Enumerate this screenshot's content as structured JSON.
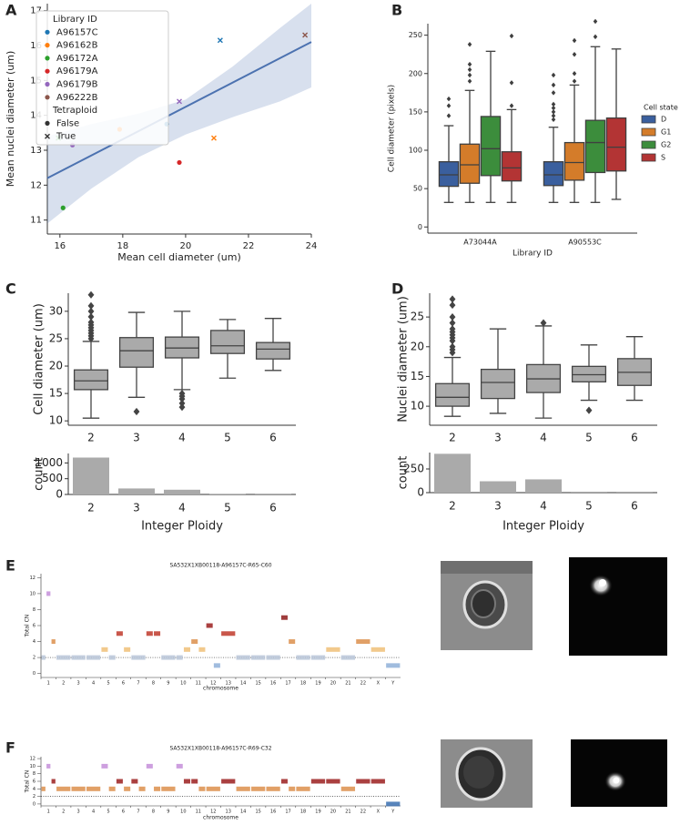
{
  "panel_labels": [
    "A",
    "B",
    "C",
    "D",
    "E",
    "F"
  ],
  "chart_data": [
    {
      "type": "scatter",
      "xlabel": "Mean cell diameter (um)",
      "ylabel": "Mean nuclei diameter (um)",
      "xlim": [
        15.6,
        24.0
      ],
      "xticks": [
        16,
        18,
        20,
        22,
        24
      ],
      "ylim": [
        10.6,
        17.2
      ],
      "yticks": [
        11,
        12,
        13,
        14,
        15,
        16,
        17
      ],
      "legend_title": "Library ID",
      "markers": {
        "title": "Tetraploid",
        "names": [
          "False",
          "True"
        ],
        "color": "#333333"
      },
      "series": [
        {
          "name": "A96157C",
          "color": "#1f77b4",
          "x": [
            19.4,
            21.1
          ],
          "y": [
            13.75,
            16.15
          ],
          "tetraploid": [
            0,
            1
          ]
        },
        {
          "name": "A96162B",
          "color": "#ff7f0e",
          "x": [
            17.9,
            20.9
          ],
          "y": [
            13.6,
            13.35
          ],
          "tetraploid": [
            0,
            1
          ]
        },
        {
          "name": "A96172A",
          "color": "#2ca02c",
          "x": [
            16.1,
            15.95
          ],
          "y": [
            11.35,
            13.35
          ],
          "tetraploid": [
            0,
            1
          ]
        },
        {
          "name": "A96179A",
          "color": "#d62728",
          "x": [
            19.8
          ],
          "y": [
            12.65
          ],
          "tetraploid": [
            0
          ]
        },
        {
          "name": "A96179B",
          "color": "#9467bd",
          "x": [
            16.4,
            19.8
          ],
          "y": [
            13.15,
            14.4
          ],
          "tetraploid": [
            0,
            1
          ]
        },
        {
          "name": "A96222B",
          "color": "#8c564b",
          "x": [
            23.8
          ],
          "y": [
            16.3
          ],
          "tetraploid": [
            1
          ]
        }
      ],
      "fit_color": "#4c72b0",
      "fit": {
        "x": [
          15.6,
          24.0
        ],
        "y": [
          12.2,
          16.1
        ]
      },
      "ci": {
        "x": [
          15.6,
          17,
          18.5,
          20,
          21.5,
          23,
          24
        ],
        "upper": [
          13.4,
          13.75,
          14.05,
          14.45,
          15.4,
          16.5,
          17.2
        ],
        "lower": [
          10.9,
          11.9,
          12.8,
          13.45,
          13.95,
          14.4,
          14.8
        ]
      }
    },
    {
      "type": "box",
      "xlabel": "Library ID",
      "ylabel": "Cell diameter (pixels)",
      "categories": [
        "A73044A",
        "A90553C"
      ],
      "ylim": [
        -8,
        265
      ],
      "yticks": [
        0,
        50,
        100,
        150,
        200,
        250
      ],
      "line_color": "#3f3f3f",
      "legend_title": "Cell state",
      "series": [
        {
          "name": "D",
          "color": "#3a5f9e",
          "boxes": [
            {
              "whislo": 32,
              "q1": 53,
              "median": 68,
              "q3": 85,
              "whishi": 132,
              "fliers": [
                145,
                158,
                167
              ]
            },
            {
              "whislo": 32,
              "q1": 54,
              "median": 68,
              "q3": 85,
              "whishi": 130,
              "fliers": [
                140,
                145,
                150,
                155,
                160,
                175,
                185,
                198
              ]
            }
          ]
        },
        {
          "name": "G1",
          "color": "#d47c2a",
          "boxes": [
            {
              "whislo": 32,
              "q1": 57,
              "median": 81,
              "q3": 108,
              "whishi": 178,
              "fliers": [
                190,
                198,
                205,
                212,
                238
              ]
            },
            {
              "whislo": 32,
              "q1": 61,
              "median": 84,
              "q3": 110,
              "whishi": 185,
              "fliers": [
                190,
                200,
                225,
                243
              ]
            }
          ]
        },
        {
          "name": "G2",
          "color": "#3c8d3c",
          "boxes": [
            {
              "whislo": 32,
              "q1": 67,
              "median": 102,
              "q3": 144,
              "whishi": 229,
              "fliers": []
            },
            {
              "whislo": 32,
              "q1": 71,
              "median": 110,
              "q3": 139,
              "whishi": 235,
              "fliers": [
                248,
                268
              ]
            }
          ]
        },
        {
          "name": "S",
          "color": "#b33434",
          "boxes": [
            {
              "whislo": 32,
              "q1": 60,
              "median": 77,
              "q3": 98,
              "whishi": 153,
              "fliers": [
                158,
                188,
                249
              ]
            },
            {
              "whislo": 36,
              "q1": 73,
              "median": 104,
              "q3": 142,
              "whishi": 232,
              "fliers": []
            }
          ]
        }
      ]
    },
    {
      "type": "box",
      "ylabel": "Cell diameter (um)",
      "categories": [
        "2",
        "3",
        "4",
        "5",
        "6"
      ],
      "ylim": [
        9.2,
        33.3
      ],
      "yticks": [
        10,
        15,
        20,
        25,
        30
      ],
      "line_color": "#444444",
      "series": [
        {
          "color": "#aaaaaa",
          "boxes": [
            {
              "whislo": 10.5,
              "q1": 15.7,
              "median": 17.3,
              "q3": 19.3,
              "whishi": 24.5,
              "fliers": [
                25,
                25.5,
                26,
                26.5,
                27,
                27.5,
                28,
                29,
                30,
                31,
                33
              ]
            },
            {
              "whislo": 14.3,
              "q1": 19.8,
              "median": 22.8,
              "q3": 25.2,
              "whishi": 29.8,
              "fliers": [
                11.7
              ]
            },
            {
              "whislo": 15.7,
              "q1": 21.5,
              "median": 23.3,
              "q3": 25.3,
              "whishi": 30,
              "fliers": [
                12.5,
                13.2,
                14,
                14.5,
                15
              ]
            },
            {
              "whislo": 17.8,
              "q1": 22.3,
              "median": 23.7,
              "q3": 26.5,
              "whishi": 28.5,
              "fliers": []
            },
            {
              "whislo": 19.2,
              "q1": 21.3,
              "median": 23.1,
              "q3": 24.3,
              "whishi": 28.7,
              "fliers": []
            }
          ]
        }
      ]
    },
    {
      "type": "bar",
      "xlabel": "Integer Ploidy",
      "ylabel": "count",
      "categories": [
        "2",
        "3",
        "4",
        "5",
        "6"
      ],
      "values": [
        1170,
        190,
        150,
        10,
        25
      ],
      "color": "#aaaaaa",
      "ylim": [
        0,
        1300
      ],
      "yticks": [
        0,
        500,
        1000
      ]
    },
    {
      "type": "box",
      "ylabel": "Nuclei diameter (um)",
      "categories": [
        "2",
        "3",
        "4",
        "5",
        "6"
      ],
      "ylim": [
        6.8,
        29
      ],
      "yticks": [
        10,
        15,
        20,
        25
      ],
      "line_color": "#444444",
      "series": [
        {
          "color": "#aaaaaa",
          "boxes": [
            {
              "whislo": 8.3,
              "q1": 10,
              "median": 11.5,
              "q3": 13.8,
              "whishi": 18.2,
              "fliers": [
                19,
                19.5,
                20,
                21,
                21.5,
                22,
                22.5,
                23,
                24,
                25,
                27,
                28
              ]
            },
            {
              "whislo": 8.8,
              "q1": 11.3,
              "median": 14,
              "q3": 16.2,
              "whishi": 23,
              "fliers": []
            },
            {
              "whislo": 8,
              "q1": 12.3,
              "median": 14.6,
              "q3": 17,
              "whishi": 23.5,
              "fliers": [
                24
              ]
            },
            {
              "whislo": 11,
              "q1": 14.1,
              "median": 15.3,
              "q3": 16.7,
              "whishi": 20.3,
              "fliers": [
                9.3
              ]
            },
            {
              "whislo": 11,
              "q1": 13.5,
              "median": 15.7,
              "q3": 18,
              "whishi": 21.7,
              "fliers": []
            }
          ]
        }
      ]
    },
    {
      "type": "bar",
      "xlabel": "Integer Ploidy",
      "ylabel": "count",
      "categories": [
        "2",
        "3",
        "4",
        "5",
        "6"
      ],
      "values": [
        410,
        120,
        140,
        10,
        10
      ],
      "color": "#aaaaaa",
      "ylim": [
        0,
        423
      ],
      "yticks": [
        0,
        250
      ]
    },
    {
      "type": "cn",
      "title": "SA532X1XB00118-A96157C-R65-C60",
      "xlabel": "chromosome",
      "ylabel": "Total CN",
      "ylim": [
        -0.5,
        12.5
      ],
      "yticks": [
        0,
        2,
        4,
        6,
        8,
        10,
        12
      ],
      "reference": 2,
      "cn_colors": [
        "#3a6fb0",
        "#8fb0d8",
        "#b9c6d8",
        "#f0bf78",
        "#dc8f4c",
        "#c0392b",
        "#9b1f1f",
        "#8e1b1b",
        "#c48ed9",
        "#c48ed9",
        "#c48ed9",
        "#c48ed9",
        "#c48ed9"
      ],
      "categories": [
        "1",
        "2",
        "3",
        "4",
        "5",
        "6",
        "7",
        "8",
        "9",
        "10",
        "11",
        "12",
        "13",
        "14",
        "15",
        "16",
        "17",
        "18",
        "19",
        "20",
        "21",
        "22",
        "X",
        "Y"
      ],
      "values": [
        [
          2,
          10,
          4
        ],
        [
          2
        ],
        [
          2
        ],
        [
          2
        ],
        [
          3,
          2
        ],
        [
          5,
          3
        ],
        [
          2
        ],
        [
          5,
          5
        ],
        [
          2
        ],
        [
          2,
          3
        ],
        [
          4,
          3
        ],
        [
          6,
          1
        ],
        [
          5
        ],
        [
          2
        ],
        [
          2
        ],
        [
          2
        ],
        [
          7,
          4
        ],
        [
          2
        ],
        [
          2
        ],
        [
          3
        ],
        [
          2
        ],
        [
          4
        ],
        [
          3
        ],
        [
          1
        ]
      ]
    },
    {
      "type": "cn",
      "title": "SA532X1XB00118-A96157C-R69-C32",
      "xlabel": "chromosome",
      "ylabel": "Total CN",
      "ylim": [
        -0.5,
        12.5
      ],
      "yticks": [
        0,
        2,
        4,
        6,
        8,
        10,
        12
      ],
      "reference": 2,
      "cn_colors": [
        "#3a6fb0",
        "#8fb0d8",
        "#b9c6d8",
        "#f0bf78",
        "#dc8f4c",
        "#c0392b",
        "#9b1f1f",
        "#8e1b1b",
        "#c48ed9",
        "#c48ed9",
        "#c48ed9",
        "#c48ed9",
        "#c48ed9"
      ],
      "categories": [
        "1",
        "2",
        "3",
        "4",
        "5",
        "6",
        "7",
        "8",
        "9",
        "10",
        "11",
        "12",
        "13",
        "14",
        "15",
        "16",
        "17",
        "18",
        "19",
        "20",
        "21",
        "22",
        "X",
        "Y"
      ],
      "values": [
        [
          4,
          10,
          6
        ],
        [
          4
        ],
        [
          4
        ],
        [
          4
        ],
        [
          10,
          4
        ],
        [
          6,
          4
        ],
        [
          6,
          4
        ],
        [
          10,
          4
        ],
        [
          4
        ],
        [
          10,
          6
        ],
        [
          6,
          4
        ],
        [
          4
        ],
        [
          6
        ],
        [
          4
        ],
        [
          4
        ],
        [
          4
        ],
        [
          6,
          4
        ],
        [
          4
        ],
        [
          6
        ],
        [
          6
        ],
        [
          4
        ],
        [
          6
        ],
        [
          6
        ],
        [
          0
        ]
      ]
    }
  ]
}
